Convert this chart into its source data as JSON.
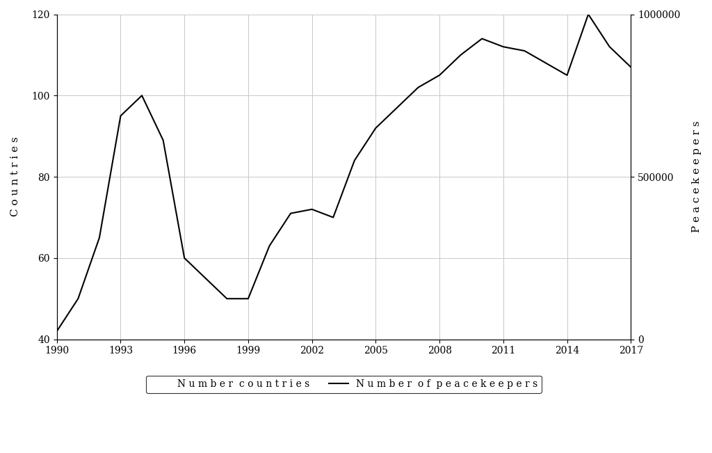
{
  "years": [
    1990,
    1991,
    1992,
    1993,
    1994,
    1995,
    1996,
    1997,
    1998,
    1999,
    2000,
    2001,
    2002,
    2003,
    2004,
    2005,
    2006,
    2007,
    2008,
    2009,
    2010,
    2011,
    2012,
    2013,
    2014,
    2015,
    2016,
    2017
  ],
  "countries": [
    42,
    50,
    65,
    95,
    100,
    89,
    60,
    55,
    50,
    50,
    63,
    71,
    72,
    70,
    84,
    92,
    97,
    102,
    105,
    110,
    114,
    112,
    111,
    108,
    105,
    120,
    112,
    107
  ],
  "left_ylim": [
    40,
    120
  ],
  "right_ylim": [
    0,
    1000000
  ],
  "left_yticks": [
    40,
    60,
    80,
    100,
    120
  ],
  "right_yticks": [
    0,
    500000,
    1000000
  ],
  "xticks": [
    1990,
    1993,
    1996,
    1999,
    2002,
    2005,
    2008,
    2011,
    2014,
    2017
  ],
  "xlim": [
    1990,
    2017
  ],
  "left_ylabel": "C o u n t r i e s",
  "right_ylabel": "P e a c e k e e p e r s",
  "legend_label_countries": "N u m b e r  c o u n t r i e s",
  "legend_label_peacekeepers": "N u m b e r  o f  p e a c e k e e p e r s",
  "line_color": "#000000",
  "line_width": 1.5,
  "background_color": "#ffffff",
  "grid_color": "#c8c8c8",
  "font_family": "serif",
  "tick_fontsize": 10,
  "label_fontsize": 11
}
